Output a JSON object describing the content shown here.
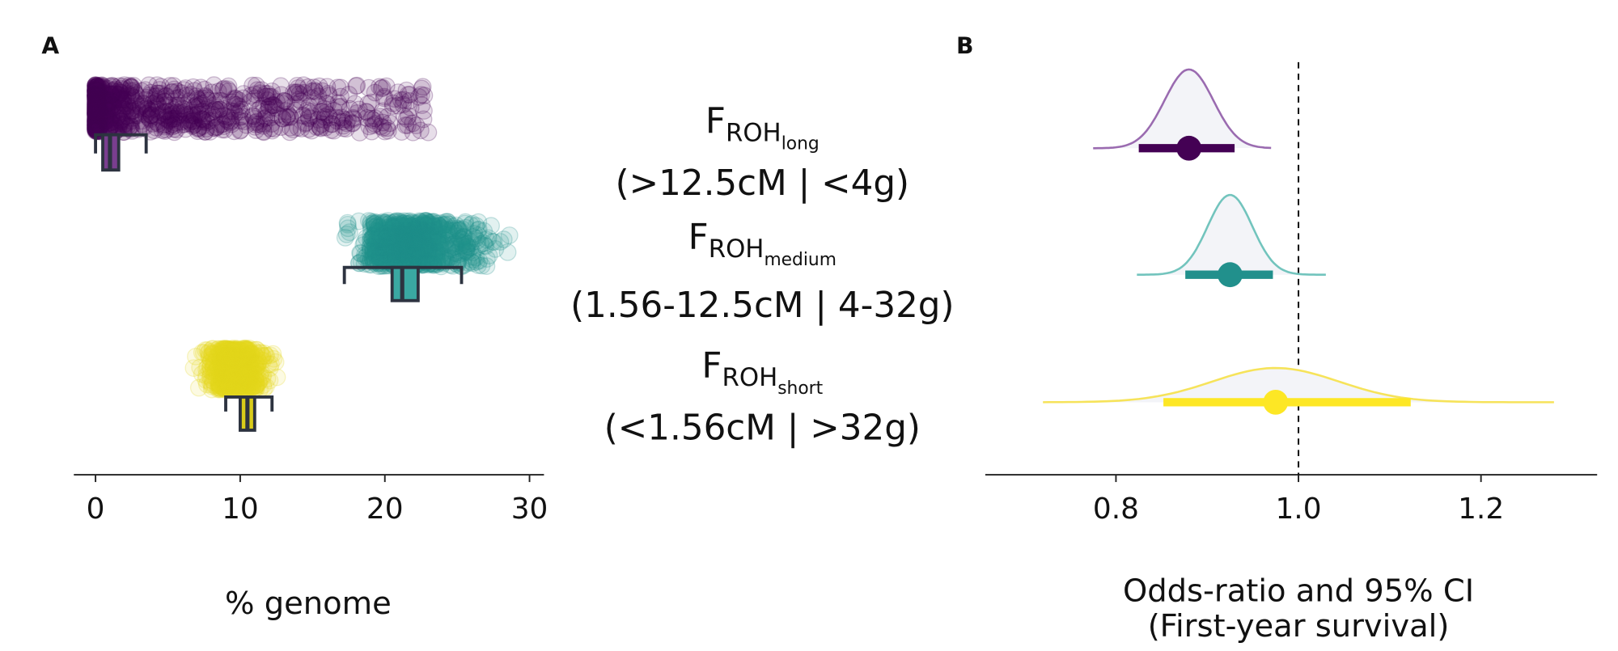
{
  "chart_data": [
    {
      "panel": "A",
      "type": "scatter",
      "subtype": "jittered points with boxplots",
      "xlabel": "% genome",
      "xlim": [
        -1.5,
        31
      ],
      "xticks": [
        0,
        10,
        20,
        30
      ],
      "tick_labels": [
        "0",
        "10",
        "20",
        "30"
      ],
      "grid": false,
      "series": [
        {
          "name": "long",
          "color": "#440154",
          "box_fill": "#7a3e8f",
          "point_range": [
            0,
            23
          ],
          "box": {
            "whisker_low": 0,
            "q1": 0.5,
            "median": 1.0,
            "q3": 1.6,
            "whisker_high": 3.5
          }
        },
        {
          "name": "medium",
          "color": "#21908C",
          "box_fill": "#3aa8a2",
          "point_range": [
            16.5,
            29.5
          ],
          "box": {
            "whisker_low": 17.2,
            "q1": 20.5,
            "median": 21.2,
            "q3": 22.3,
            "whisker_high": 25.3
          }
        },
        {
          "name": "short",
          "color": "#E4D81C",
          "box_fill": "#d9cc1a",
          "point_range": [
            6.5,
            13
          ],
          "box": {
            "whisker_low": 9.0,
            "q1": 10.0,
            "median": 10.5,
            "q3": 11.0,
            "whisker_high": 12.2
          }
        }
      ]
    },
    {
      "panel": "B",
      "type": "line",
      "subtype": "posterior density with point estimate and 95% CI",
      "xlabel": "Odds-ratio and 95% CI",
      "xlabel2": "(First-year survival)",
      "xlim": [
        0.7,
        1.3
      ],
      "xticks": [
        0.8,
        1.0,
        1.2
      ],
      "tick_labels": [
        "0.8",
        "1.0",
        "1.2"
      ],
      "reference_line": 1.0,
      "grid": false,
      "series": [
        {
          "name": "long",
          "color": "#440154",
          "line_color": "#9a6bb0",
          "estimate": 0.88,
          "ci": [
            0.825,
            0.93
          ],
          "density_range": [
            0.775,
            0.97
          ]
        },
        {
          "name": "medium",
          "color": "#21908C",
          "line_color": "#72c4bd",
          "estimate": 0.925,
          "ci": [
            0.876,
            0.972
          ],
          "density_range": [
            0.823,
            1.03
          ]
        },
        {
          "name": "short",
          "color": "#FDE725",
          "line_color": "#f6e35a",
          "estimate": 0.975,
          "ci": [
            0.852,
            1.123
          ],
          "density_range": [
            0.72,
            1.28
          ]
        }
      ]
    }
  ],
  "labels": {
    "panel_a": "A",
    "panel_b": "B",
    "rows": [
      {
        "main": "F",
        "sub": "ROH",
        "subsub": "long",
        "range": "(>12.5cM | <4g)"
      },
      {
        "main": "F",
        "sub": "ROH",
        "subsub": "medium",
        "range": "(1.56-12.5cM | 4-32g)"
      },
      {
        "main": "F",
        "sub": "ROH",
        "subsub": "short",
        "range": "(<1.56cM | >32g)"
      }
    ]
  }
}
